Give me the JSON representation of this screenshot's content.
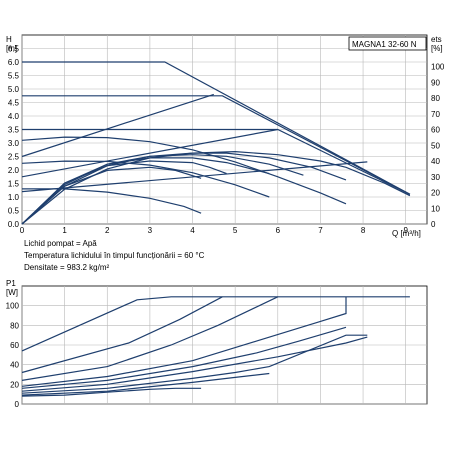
{
  "chart_data": [
    {
      "type": "line",
      "title": "MAGNA1 32-60 N",
      "y_unit_top": "H",
      "y_unit_bottom": "[m]",
      "y2_unit_top": "ets",
      "y2_unit_bottom": "[%]",
      "x_label": "Q [m³/h]",
      "xlim": [
        0,
        9.5
      ],
      "ylim": [
        0,
        7
      ],
      "y2lim": [
        0,
        120
      ],
      "x_ticks": [
        "0",
        "1",
        "2",
        "3",
        "4",
        "5",
        "6",
        "7",
        "8",
        "9"
      ],
      "y_ticks": [
        "0.0",
        "0.5",
        "1.0",
        "1.5",
        "2.0",
        "2.5",
        "3.0",
        "3.5",
        "4.0",
        "4.5",
        "5.0",
        "5.5",
        "6.0",
        "6.5"
      ],
      "y2_ticks": [
        "0",
        "10",
        "20",
        "30",
        "40",
        "50",
        "60",
        "70",
        "80",
        "90",
        "100"
      ],
      "grid": true,
      "notes": [
        "Lichid pompat = Apă",
        "Temperatura lichidului în timpul funcționării = 60 °C",
        "Densitate = 983.2 kg/m²"
      ],
      "series": [
        {
          "role": "head",
          "points": [
            [
              0,
              6.0
            ],
            [
              3.35,
              6.0
            ],
            [
              9.1,
              1.1
            ]
          ]
        },
        {
          "role": "head",
          "points": [
            [
              0,
              4.75
            ],
            [
              4.7,
              4.75
            ],
            [
              9.1,
              1.1
            ]
          ]
        },
        {
          "role": "head",
          "points": [
            [
              0,
              3.5
            ],
            [
              6.0,
              3.5
            ],
            [
              9.1,
              1.1
            ]
          ]
        },
        {
          "role": "head",
          "points": [
            [
              0,
              2.5
            ],
            [
              4.5,
              4.8
            ]
          ]
        },
        {
          "role": "head",
          "points": [
            [
              0,
              1.75
            ],
            [
              6.0,
              3.5
            ]
          ]
        },
        {
          "role": "head",
          "points": [
            [
              0,
              1.2
            ],
            [
              8.1,
              2.3
            ]
          ]
        },
        {
          "role": "head",
          "points": [
            [
              0,
              3.1
            ],
            [
              1.0,
              3.22
            ],
            [
              2.0,
              3.2
            ],
            [
              3.0,
              3.05
            ],
            [
              4.0,
              2.75
            ],
            [
              5.0,
              2.3
            ],
            [
              6.0,
              1.75
            ],
            [
              7.0,
              1.15
            ],
            [
              7.6,
              0.75
            ]
          ]
        },
        {
          "role": "head",
          "points": [
            [
              0,
              2.25
            ],
            [
              1.0,
              2.33
            ],
            [
              2.0,
              2.32
            ],
            [
              3.0,
              2.18
            ],
            [
              4.0,
              1.9
            ],
            [
              5.0,
              1.45
            ],
            [
              5.8,
              1.0
            ]
          ]
        },
        {
          "role": "head",
          "points": [
            [
              0,
              1.3
            ],
            [
              1.0,
              1.3
            ],
            [
              2.0,
              1.18
            ],
            [
              3.0,
              0.95
            ],
            [
              3.8,
              0.65
            ],
            [
              4.2,
              0.4
            ]
          ]
        },
        {
          "role": "efficiency",
          "points": [
            [
              0,
              0
            ],
            [
              1.0,
              22
            ],
            [
              2.0,
              35
            ],
            [
              3.0,
              42
            ],
            [
              4.0,
              45
            ],
            [
              5.0,
              46
            ],
            [
              6.0,
              44
            ],
            [
              7.0,
              40
            ],
            [
              7.6,
              36
            ],
            [
              8.5,
              26
            ],
            [
              9.1,
              18
            ]
          ]
        },
        {
          "role": "efficiency",
          "points": [
            [
              0,
              0
            ],
            [
              1.0,
              24
            ],
            [
              2.0,
              37
            ],
            [
              3.0,
              43
            ],
            [
              4.0,
              45
            ],
            [
              4.8,
              45
            ],
            [
              5.8,
              42
            ],
            [
              6.8,
              36
            ],
            [
              7.6,
              28
            ]
          ]
        },
        {
          "role": "efficiency",
          "points": [
            [
              0,
              0
            ],
            [
              1.0,
              25
            ],
            [
              2.0,
              38
            ],
            [
              3.0,
              43
            ],
            [
              4.0,
              44
            ],
            [
              4.8,
              43
            ],
            [
              5.8,
              38
            ],
            [
              6.6,
              31
            ]
          ]
        },
        {
          "role": "efficiency",
          "points": [
            [
              0,
              0
            ],
            [
              1.0,
              26
            ],
            [
              2.0,
              38
            ],
            [
              3.0,
              42
            ],
            [
              4.0,
              42
            ],
            [
              4.8,
              39
            ],
            [
              5.8,
              32
            ]
          ]
        },
        {
          "role": "efficiency",
          "points": [
            [
              0,
              0
            ],
            [
              1.0,
              26
            ],
            [
              2.0,
              37
            ],
            [
              3.0,
              40
            ],
            [
              4.0,
              39
            ],
            [
              4.4,
              36
            ],
            [
              4.8,
              32
            ]
          ]
        },
        {
          "role": "efficiency",
          "points": [
            [
              0,
              0
            ],
            [
              1.0,
              24
            ],
            [
              2.0,
              34
            ],
            [
              3.0,
              36
            ],
            [
              3.6,
              34
            ],
            [
              4.2,
              29
            ]
          ]
        }
      ]
    },
    {
      "type": "line",
      "y_unit_top": "P1",
      "y_unit_bottom": "[W]",
      "xlim": [
        0,
        9.5
      ],
      "ylim": [
        0,
        120
      ],
      "y_ticks": [
        "0",
        "20",
        "40",
        "60",
        "80",
        "100"
      ],
      "grid": true,
      "series": [
        {
          "role": "power",
          "points": [
            [
              0,
              54
            ],
            [
              2.7,
              106
            ],
            [
              3.5,
              109
            ],
            [
              9.1,
              109
            ]
          ]
        },
        {
          "role": "power",
          "points": [
            [
              0,
              32
            ],
            [
              2.5,
              62
            ],
            [
              3.7,
              86
            ],
            [
              4.7,
              109
            ]
          ]
        },
        {
          "role": "power",
          "points": [
            [
              0,
              24
            ],
            [
              2.0,
              38
            ],
            [
              3.5,
              60
            ],
            [
              4.6,
              80
            ],
            [
              6.0,
              109
            ]
          ]
        },
        {
          "role": "power",
          "points": [
            [
              0,
              18
            ],
            [
              2.0,
              28
            ],
            [
              4.0,
              44
            ],
            [
              5.5,
              64
            ],
            [
              7.0,
              84
            ],
            [
              7.6,
              92
            ],
            [
              7.6,
              109
            ]
          ]
        },
        {
          "role": "power",
          "points": [
            [
              0,
              16
            ],
            [
              2.0,
              24
            ],
            [
              4.0,
              38
            ],
            [
              5.5,
              52
            ],
            [
              6.5,
              64
            ],
            [
              7.6,
              78
            ]
          ]
        },
        {
          "role": "power",
          "points": [
            [
              0,
              13
            ],
            [
              2.0,
              20
            ],
            [
              4.0,
              33
            ],
            [
              6.0,
              48
            ],
            [
              7.6,
              62
            ],
            [
              8.1,
              68
            ]
          ]
        },
        {
          "role": "power",
          "points": [
            [
              0,
              11
            ],
            [
              2.0,
              16
            ],
            [
              4.0,
              26
            ],
            [
              5.0,
              32
            ],
            [
              5.8,
              38
            ],
            [
              7.6,
              70
            ],
            [
              8.1,
              70
            ]
          ]
        },
        {
          "role": "power",
          "points": [
            [
              0,
              9
            ],
            [
              2.0,
              13
            ],
            [
              4.0,
              22
            ],
            [
              5.0,
              27
            ],
            [
              5.8,
              31
            ]
          ]
        },
        {
          "role": "power",
          "points": [
            [
              0,
              8
            ],
            [
              1.0,
              9
            ],
            [
              2.0,
              12
            ],
            [
              3.0,
              15
            ],
            [
              3.6,
              16
            ],
            [
              4.2,
              16
            ]
          ]
        }
      ]
    }
  ]
}
